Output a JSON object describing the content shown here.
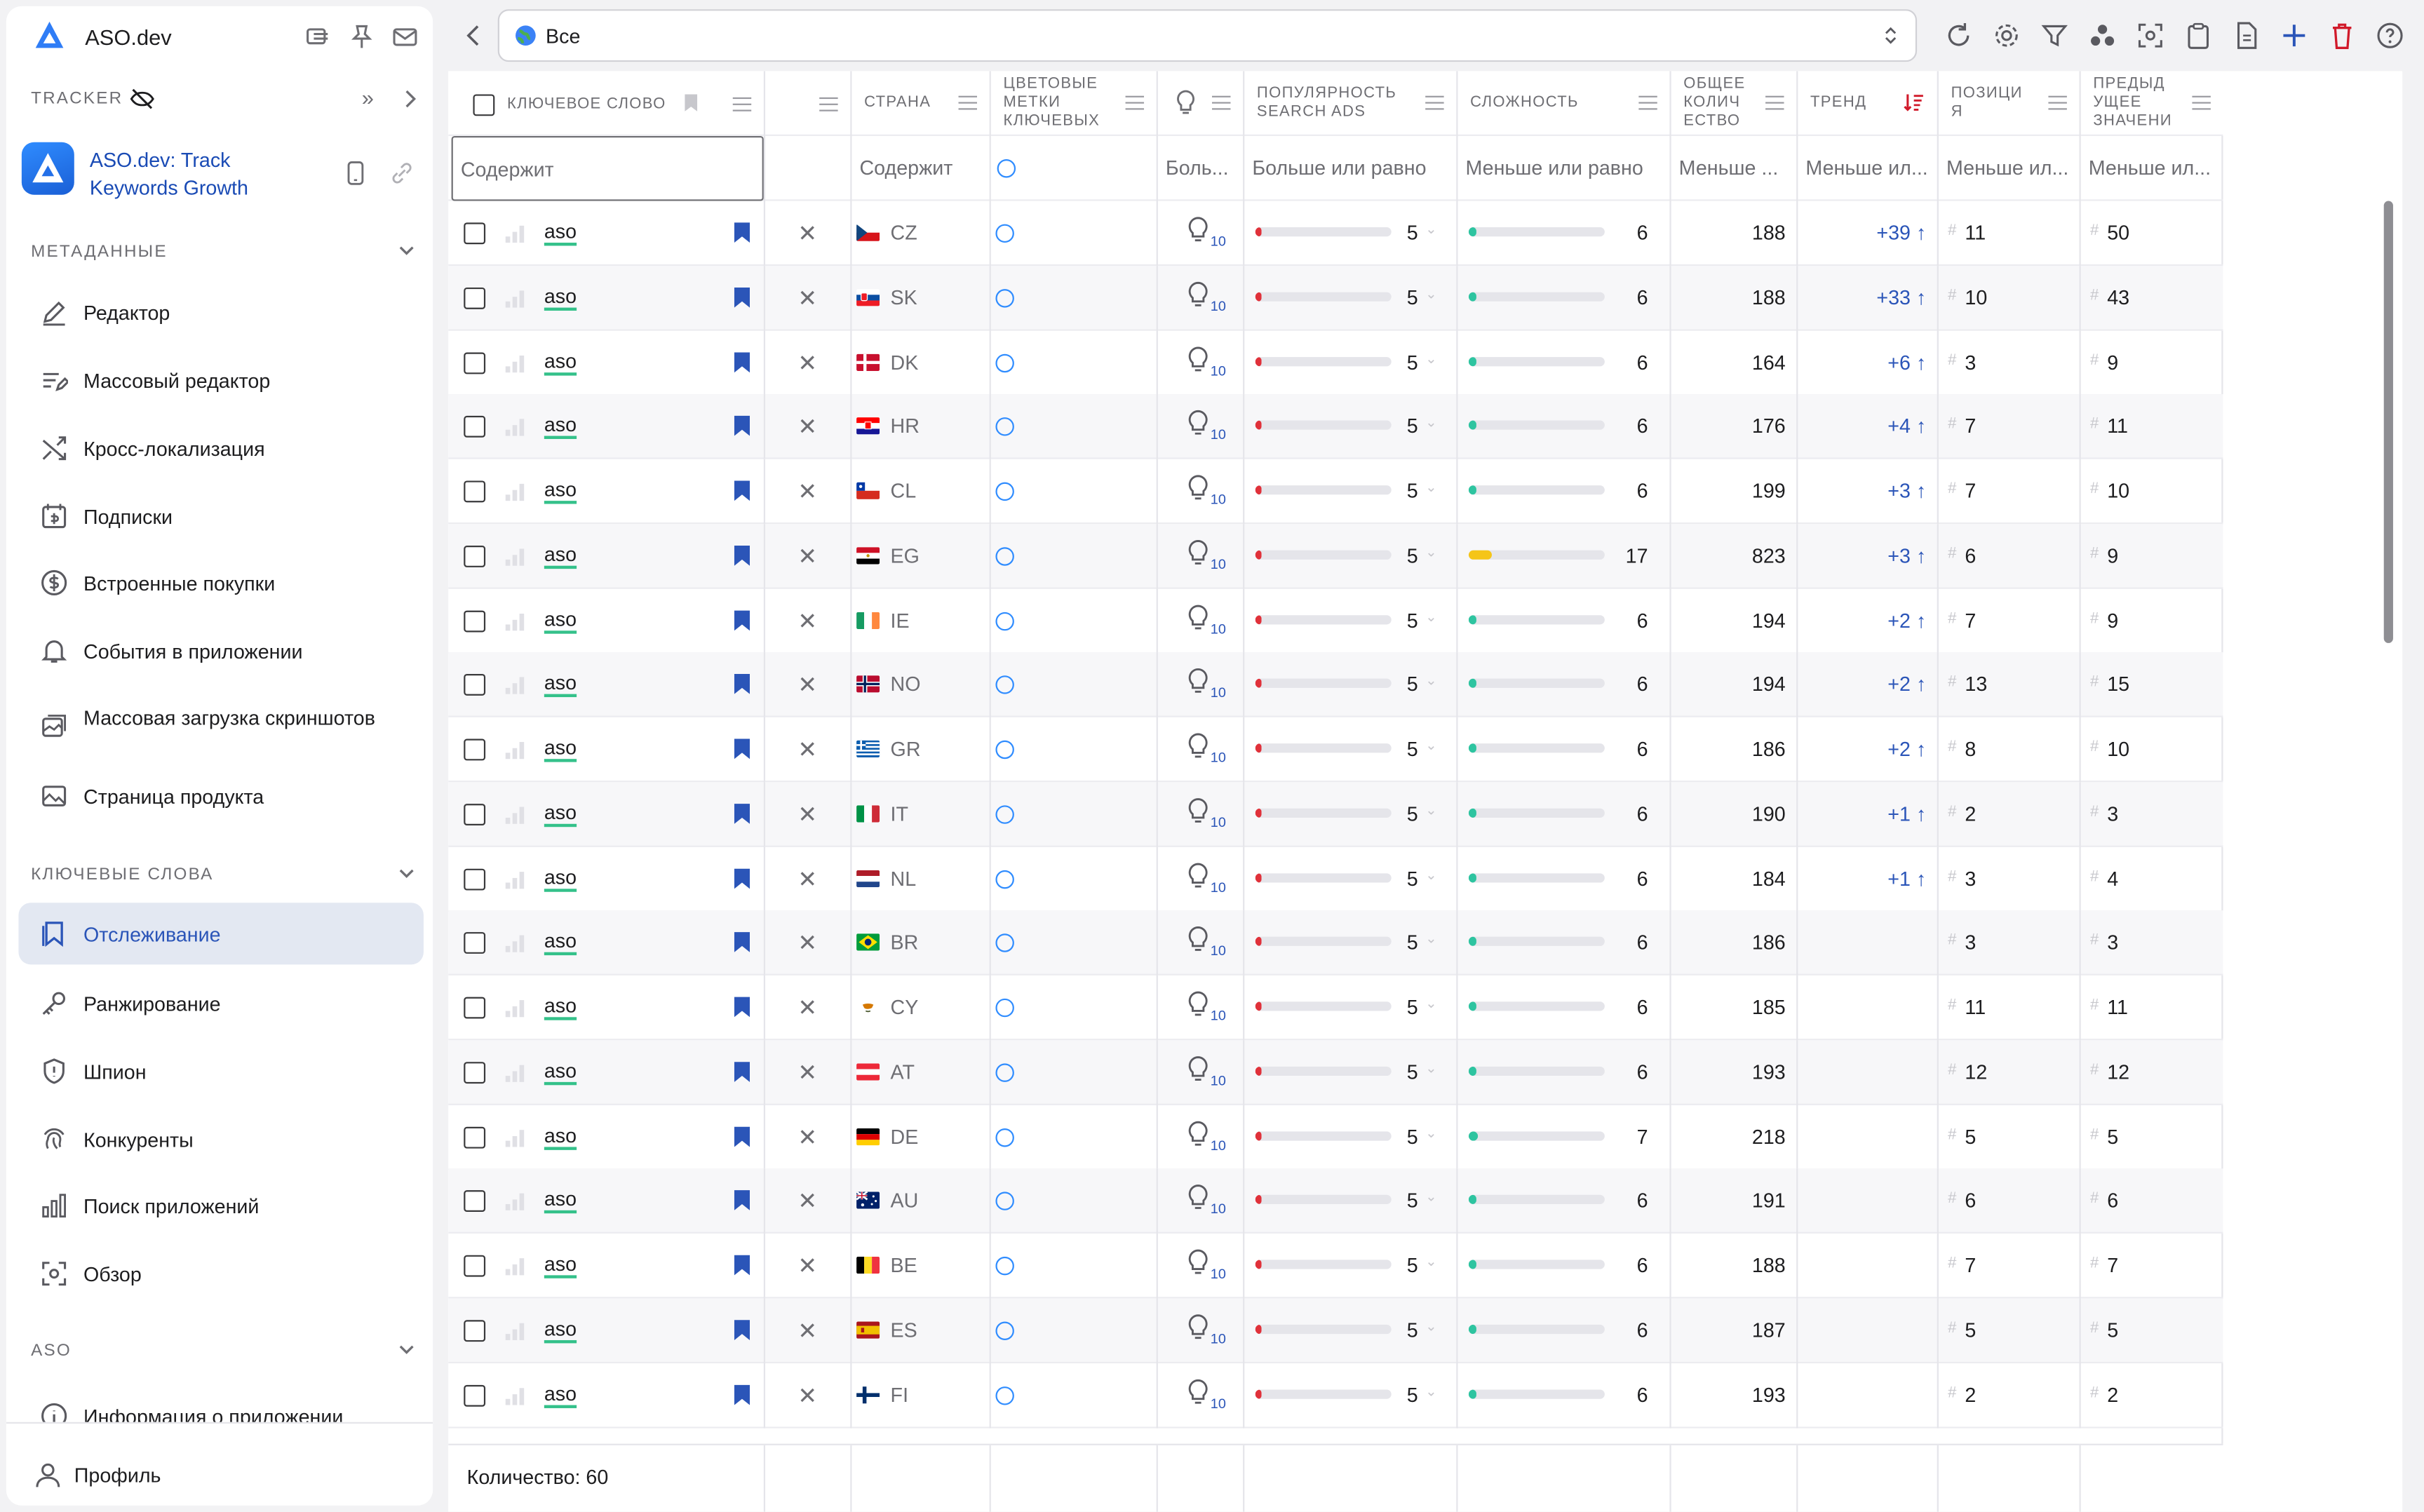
{
  "app": {
    "title": "ASO.dev"
  },
  "sidebar": {
    "tracker_label": "TRACKER",
    "app_name": "ASO.dev: Track Keywords Growth",
    "sections": {
      "metadata": "МЕТАДАННЫЕ",
      "keywords": "КЛЮЧЕВЫЕ СЛОВА",
      "aso": "ASO"
    },
    "metadata_items": [
      {
        "label": "Редактор",
        "icon": "pencil-icon"
      },
      {
        "label": "Массовый редактор",
        "icon": "list-edit-icon"
      },
      {
        "label": "Кросс-локализация",
        "icon": "shuffle-icon"
      },
      {
        "label": "Подписки",
        "icon": "subscription-icon"
      },
      {
        "label": "Встроенные покупки",
        "icon": "dollar-icon"
      },
      {
        "label": "События в приложении",
        "icon": "bell-icon"
      },
      {
        "label": "Массовая загрузка скриншотов",
        "icon": "images-icon"
      },
      {
        "label": "Страница продукта",
        "icon": "image-icon"
      }
    ],
    "keyword_items": [
      {
        "label": "Отслеживание",
        "icon": "bookmark-icon",
        "active": true
      },
      {
        "label": "Ранжирование",
        "icon": "key-icon"
      },
      {
        "label": "Шпион",
        "icon": "shield-icon"
      },
      {
        "label": "Конкуренты",
        "icon": "fingerprint-icon"
      },
      {
        "label": "Поиск приложений",
        "icon": "bar-chart-icon"
      },
      {
        "label": "Обзор",
        "icon": "scan-icon"
      }
    ],
    "aso_items": [
      {
        "label": "Информация о приложении",
        "icon": "info-icon"
      }
    ],
    "profile": "Профиль"
  },
  "toolbar": {
    "selected": "Все"
  },
  "table": {
    "headers": {
      "keyword": "КЛЮЧЕВОЕ СЛОВО",
      "country": "СТРАНА",
      "color_tags": "ЦВЕТОВЫЕ МЕТКИ КЛЮЧЕВЫХ",
      "popularity": "ПОПУЛЯРНОСТЬ SEARCH ADS",
      "difficulty": "СЛОЖНОСТЬ",
      "volume": "ОБЩЕЕ КОЛИЧ ЕСТВО",
      "trend": "ТРЕНД",
      "position": "ПОЗИЦИ Я",
      "previous": "ПРЕДЫД УЩЕЕ ЗНАЧЕНИ"
    },
    "filters": {
      "keyword": "Содержит",
      "country": "Содержит",
      "bulb": "Боль...",
      "popularity": "Больше или равно",
      "difficulty": "Меньше или равно",
      "volume": "Меньше ...",
      "trend": "Меньше ил...",
      "position": "Меньше ил...",
      "previous": "Меньше ил..."
    },
    "bulb_sub": "10",
    "rows": [
      {
        "keyword": "aso",
        "country": "CZ",
        "popularity": 5,
        "difficulty": 6,
        "volume": 188,
        "trend": "+39",
        "position": 11,
        "previous": 50
      },
      {
        "keyword": "aso",
        "country": "SK",
        "popularity": 5,
        "difficulty": 6,
        "volume": 188,
        "trend": "+33",
        "position": 10,
        "previous": 43
      },
      {
        "keyword": "aso",
        "country": "DK",
        "popularity": 5,
        "difficulty": 6,
        "volume": 164,
        "trend": "+6",
        "position": 3,
        "previous": 9
      },
      {
        "keyword": "aso",
        "country": "HR",
        "popularity": 5,
        "difficulty": 6,
        "volume": 176,
        "trend": "+4",
        "position": 7,
        "previous": 11
      },
      {
        "keyword": "aso",
        "country": "CL",
        "popularity": 5,
        "difficulty": 6,
        "volume": 199,
        "trend": "+3",
        "position": 7,
        "previous": 10
      },
      {
        "keyword": "aso",
        "country": "EG",
        "popularity": 5,
        "difficulty": 17,
        "volume": 823,
        "trend": "+3",
        "position": 6,
        "previous": 9
      },
      {
        "keyword": "aso",
        "country": "IE",
        "popularity": 5,
        "difficulty": 6,
        "volume": 194,
        "trend": "+2",
        "position": 7,
        "previous": 9
      },
      {
        "keyword": "aso",
        "country": "NO",
        "popularity": 5,
        "difficulty": 6,
        "volume": 194,
        "trend": "+2",
        "position": 13,
        "previous": 15
      },
      {
        "keyword": "aso",
        "country": "GR",
        "popularity": 5,
        "difficulty": 6,
        "volume": 186,
        "trend": "+2",
        "position": 8,
        "previous": 10
      },
      {
        "keyword": "aso",
        "country": "IT",
        "popularity": 5,
        "difficulty": 6,
        "volume": 190,
        "trend": "+1",
        "position": 2,
        "previous": 3
      },
      {
        "keyword": "aso",
        "country": "NL",
        "popularity": 5,
        "difficulty": 6,
        "volume": 184,
        "trend": "+1",
        "position": 3,
        "previous": 4
      },
      {
        "keyword": "aso",
        "country": "BR",
        "popularity": 5,
        "difficulty": 6,
        "volume": 186,
        "trend": "",
        "position": 3,
        "previous": 3
      },
      {
        "keyword": "aso",
        "country": "CY",
        "popularity": 5,
        "difficulty": 6,
        "volume": 185,
        "trend": "",
        "position": 11,
        "previous": 11
      },
      {
        "keyword": "aso",
        "country": "AT",
        "popularity": 5,
        "difficulty": 6,
        "volume": 193,
        "trend": "",
        "position": 12,
        "previous": 12
      },
      {
        "keyword": "aso",
        "country": "DE",
        "popularity": 5,
        "difficulty": 7,
        "volume": 218,
        "trend": "",
        "position": 5,
        "previous": 5
      },
      {
        "keyword": "aso",
        "country": "AU",
        "popularity": 5,
        "difficulty": 6,
        "volume": 191,
        "trend": "",
        "position": 6,
        "previous": 6
      },
      {
        "keyword": "aso",
        "country": "BE",
        "popularity": 5,
        "difficulty": 6,
        "volume": 188,
        "trend": "",
        "position": 7,
        "previous": 7
      },
      {
        "keyword": "aso",
        "country": "ES",
        "popularity": 5,
        "difficulty": 6,
        "volume": 187,
        "trend": "",
        "position": 5,
        "previous": 5
      },
      {
        "keyword": "aso",
        "country": "FI",
        "popularity": 5,
        "difficulty": 6,
        "volume": 193,
        "trend": "",
        "position": 2,
        "previous": 2
      }
    ],
    "footer": "Количество: 60"
  },
  "colors": {
    "accent": "#2b55b8",
    "popularity_bar": "#e0313a",
    "difficulty_low": "#2ec4a0",
    "difficulty_mid": "#f5c518",
    "delete": "#d11a2a"
  }
}
